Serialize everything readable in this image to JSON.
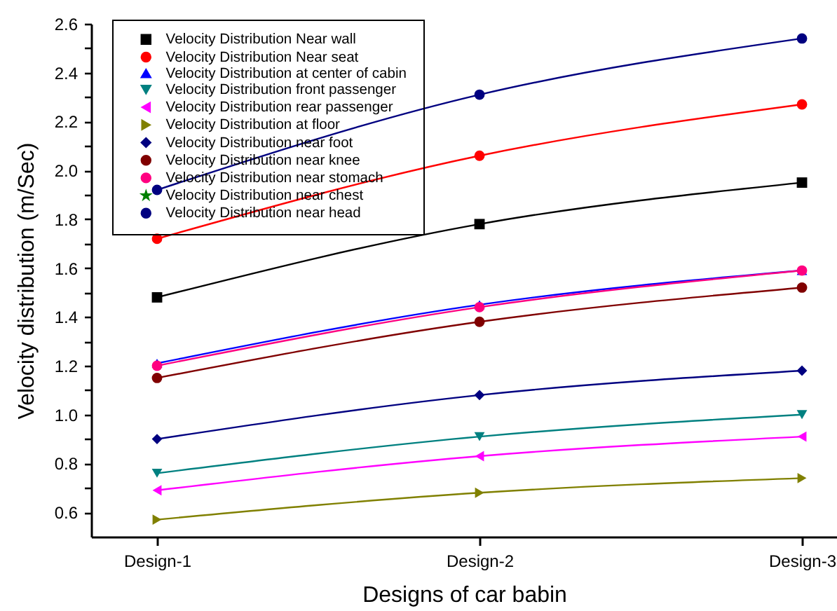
{
  "chart_data": {
    "type": "line",
    "xlabel": "Designs of car babin",
    "ylabel": "Velocity distribution (m/Sec)",
    "categories": [
      "Design-1",
      "Design-2",
      "Design-3"
    ],
    "series": [
      {
        "name": "Velocity Distribution Near wall",
        "color": "#000000",
        "marker": "square",
        "values": [
          1.48,
          1.78,
          1.95
        ]
      },
      {
        "name": "Velocity  Distribution Near seat",
        "color": "#ff0000",
        "marker": "circle",
        "values": [
          1.72,
          2.06,
          2.27
        ]
      },
      {
        "name": "Velocity  Distribution at center of cabin",
        "color": "#0000ff",
        "marker": "triangle",
        "values": [
          1.21,
          1.45,
          1.59
        ]
      },
      {
        "name": "Velocity  Distribution front passenger",
        "color": "#008080",
        "marker": "triangle-down",
        "values": [
          0.76,
          0.91,
          1.0
        ]
      },
      {
        "name": "Velocity  Distribution rear passenger",
        "color": "#ff00ff",
        "marker": "triangle-left",
        "values": [
          0.69,
          0.83,
          0.91
        ]
      },
      {
        "name": "Velocity  Distribution at floor",
        "color": "#808000",
        "marker": "triangle-right",
        "values": [
          0.57,
          0.68,
          0.74
        ]
      },
      {
        "name": "Velocity  Distribution near foot",
        "color": "#000080",
        "marker": "diamond",
        "values": [
          0.9,
          1.08,
          1.18
        ]
      },
      {
        "name": "Velocity  Distribution near knee",
        "color": "#800000",
        "marker": "circle",
        "values": [
          1.15,
          1.38,
          1.52
        ]
      },
      {
        "name": "Velocity  Distribution near stomach",
        "color": "#ff0080",
        "marker": "circle",
        "values": [
          1.2,
          1.44,
          1.59
        ]
      },
      {
        "name": "Velocity  Distribution near chest",
        "color": "#008000",
        "marker": "star",
        "values": [
          null,
          null,
          null
        ]
      },
      {
        "name": "Velocity  Distribution near head",
        "color": "#000080",
        "marker": "circle",
        "values": [
          1.92,
          2.31,
          2.54
        ]
      }
    ],
    "ylim": [
      0.5,
      2.6
    ],
    "yticks": [
      0.6,
      {
        "value": 0.7,
        "label": null
      },
      0.8,
      {
        "value": 0.9,
        "label": null
      },
      {
        "value": 1,
        "label": "1.0"
      },
      {
        "value": 1.1,
        "label": null
      },
      1.2,
      {
        "value": 1.3,
        "label": null
      },
      1.4,
      {
        "value": 1.5,
        "label": null
      },
      1.6,
      {
        "value": 1.7,
        "label": null
      },
      1.8,
      {
        "value": 1.9,
        "label": null
      },
      {
        "value": 2,
        "label": "2.0"
      },
      {
        "value": 2.1,
        "label": null
      },
      2.2,
      {
        "value": 2.3,
        "label": null
      },
      2.4,
      {
        "value": 2.5,
        "label": null
      },
      2.6
    ],
    "grid": false,
    "legend": "top left"
  }
}
